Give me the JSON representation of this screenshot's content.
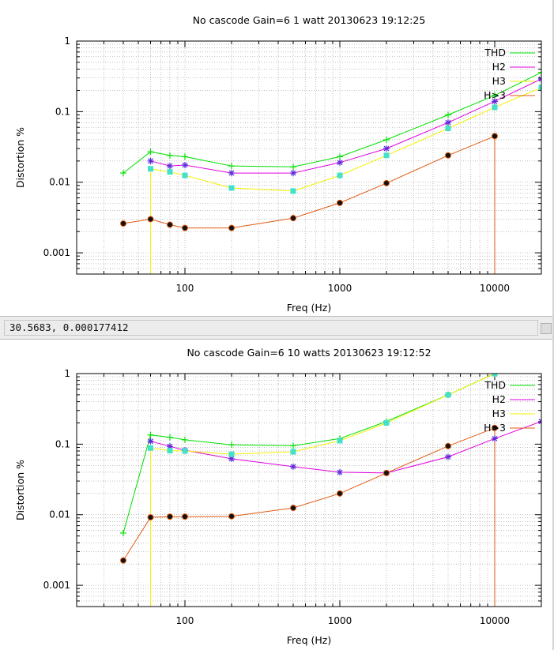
{
  "status_bar": {
    "coordinates": "30.5683,  0.000177412"
  },
  "chart_data": [
    {
      "type": "line",
      "title": "No cascode Gain=6 1 watt 20130623 19:12:25",
      "xlabel": "Freq (Hz)",
      "ylabel": "Distortion %",
      "x_scale": "log",
      "y_scale": "log",
      "xlim": [
        20,
        20000
      ],
      "ylim": [
        0.0005,
        1
      ],
      "x_ticks": [
        {
          "value": 100,
          "label": "100"
        },
        {
          "value": 1000,
          "label": "1000"
        },
        {
          "value": 10000,
          "label": "10000"
        }
      ],
      "y_ticks": [
        {
          "value": 0.001,
          "label": "0.001"
        },
        {
          "value": 0.01,
          "label": "0.01"
        },
        {
          "value": 0.1,
          "label": "0.1"
        },
        {
          "value": 1,
          "label": "1"
        }
      ],
      "grid": true,
      "legend_position": "top-right",
      "series": [
        {
          "name": "THD",
          "color": "#00e000",
          "marker": "plus",
          "x": [
            40,
            60,
            80,
            100,
            200,
            500,
            1000,
            2000,
            5000,
            10000,
            20000
          ],
          "y": [
            0.0135,
            0.027,
            0.024,
            0.023,
            0.017,
            0.0165,
            0.023,
            0.04,
            0.09,
            0.17,
            0.36
          ]
        },
        {
          "name": "H2",
          "color": "#e000e0",
          "marker": "star",
          "x": [
            60,
            80,
            100,
            200,
            500,
            1000,
            2000,
            5000,
            10000,
            20000
          ],
          "y": [
            0.02,
            0.017,
            0.0175,
            0.0135,
            0.0135,
            0.019,
            0.03,
            0.07,
            0.14,
            0.29
          ]
        },
        {
          "name": "H3",
          "color": "#f2f200",
          "marker": "square",
          "x": [
            60,
            80,
            100,
            200,
            500,
            1000,
            2000,
            5000,
            10000,
            20000
          ],
          "y": [
            0.0155,
            0.014,
            0.0125,
            0.0083,
            0.0075,
            0.0125,
            0.024,
            0.058,
            0.115,
            0.22
          ]
        },
        {
          "name": "H>3",
          "color": "#e05a10",
          "marker": "dot",
          "x": [
            40,
            60,
            80,
            100,
            200,
            500,
            1000,
            2000,
            5000,
            10000
          ],
          "y": [
            0.0026,
            0.003,
            0.0025,
            0.00225,
            0.00225,
            0.0031,
            0.0051,
            0.0097,
            0.024,
            0.045
          ]
        }
      ]
    },
    {
      "type": "line",
      "title": "No cascode Gain=6 10 watts 20130623 19:12:52",
      "xlabel": "Freq (Hz)",
      "ylabel": "Distortion %",
      "x_scale": "log",
      "y_scale": "log",
      "xlim": [
        20,
        20000
      ],
      "ylim": [
        0.0005,
        1
      ],
      "x_ticks": [
        {
          "value": 100,
          "label": "100"
        },
        {
          "value": 1000,
          "label": "1000"
        },
        {
          "value": 10000,
          "label": "10000"
        }
      ],
      "y_ticks": [
        {
          "value": 0.001,
          "label": "0.001"
        },
        {
          "value": 0.01,
          "label": "0.01"
        },
        {
          "value": 0.1,
          "label": "0.1"
        },
        {
          "value": 1,
          "label": "1"
        }
      ],
      "grid": true,
      "legend_position": "top-right",
      "series": [
        {
          "name": "THD",
          "color": "#00e000",
          "marker": "plus",
          "x": [
            40,
            60,
            80,
            100,
            200,
            500,
            1000,
            2000,
            5000,
            10000
          ],
          "y": [
            0.0055,
            0.135,
            0.125,
            0.115,
            0.098,
            0.095,
            0.12,
            0.21,
            0.5,
            1.0
          ]
        },
        {
          "name": "H2",
          "color": "#e000e0",
          "marker": "star",
          "x": [
            60,
            80,
            100,
            200,
            500,
            1000,
            2000,
            5000,
            10000,
            20000
          ],
          "y": [
            0.11,
            0.093,
            0.082,
            0.062,
            0.048,
            0.04,
            0.039,
            0.066,
            0.12,
            0.21
          ]
        },
        {
          "name": "H3",
          "color": "#f2f200",
          "marker": "square",
          "x": [
            60,
            80,
            100,
            200,
            500,
            1000,
            2000,
            5000,
            10000
          ],
          "y": [
            0.088,
            0.081,
            0.08,
            0.072,
            0.078,
            0.112,
            0.2,
            0.5,
            1.0
          ]
        },
        {
          "name": "H>3",
          "color": "#e05a10",
          "marker": "dot",
          "x": [
            40,
            60,
            80,
            100,
            200,
            500,
            1000,
            2000,
            5000,
            10000
          ],
          "y": [
            0.00225,
            0.0092,
            0.0094,
            0.0094,
            0.0095,
            0.0125,
            0.02,
            0.039,
            0.094,
            0.17
          ]
        }
      ]
    }
  ]
}
